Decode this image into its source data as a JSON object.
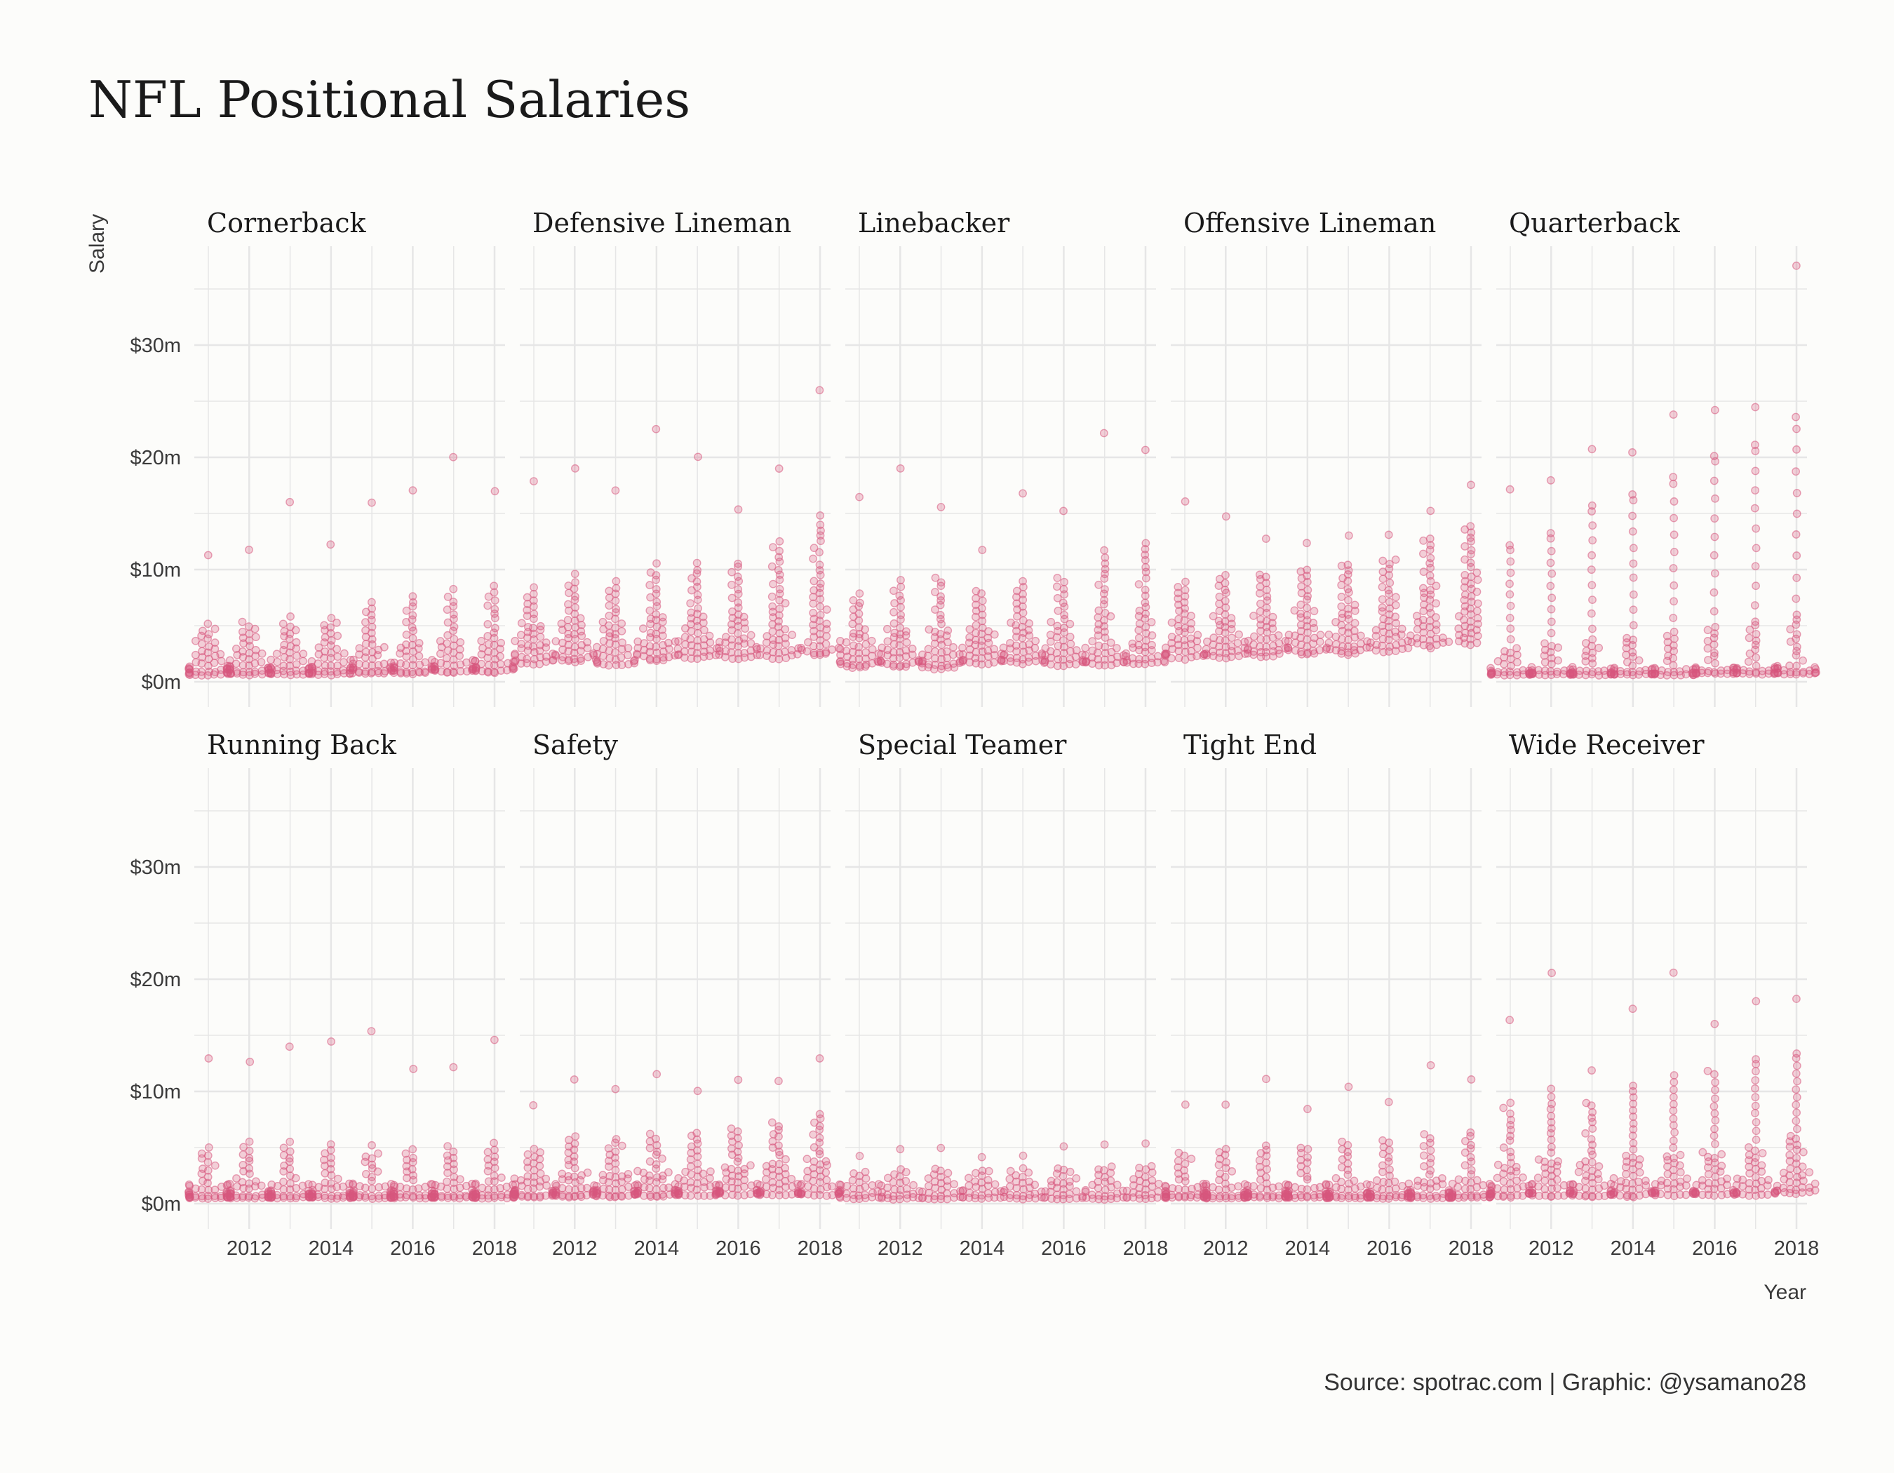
{
  "title": "NFL Positional Salaries",
  "caption": "Source: spotrac.com | Graphic: @ysamano28",
  "colors": {
    "point": "#d7577e",
    "background": "#fcfcfa",
    "grid": "#e6e6e6"
  },
  "chart_data": {
    "type": "scatter",
    "style": "beeswarm small multiples, semi-transparent points, 5 x 2 facet grid",
    "xlabel": "Year",
    "ylabel": "Salary",
    "x_range": [
      2011,
      2018
    ],
    "ylim": [
      0,
      38
    ],
    "x_ticks": [
      2012,
      2014,
      2016,
      2018
    ],
    "y_ticks": [
      {
        "value": 0,
        "label": "$0m"
      },
      {
        "value": 10,
        "label": "$10m"
      },
      {
        "value": 20,
        "label": "$20m"
      },
      {
        "value": 30,
        "label": "$30m"
      }
    ],
    "grid": true,
    "point_counts_per_year": {
      "Special Teamer": 30,
      "default": 50,
      "Quarterback": 45
    },
    "facets": [
      {
        "name": "Cornerback",
        "years": [
          {
            "year": 2011,
            "max": 11.3,
            "q": [
              0.6,
              0.8,
              1.3,
              2.7,
              4.7
            ]
          },
          {
            "year": 2012,
            "max": 11.8,
            "q": [
              0.6,
              0.9,
              1.4,
              2.8,
              4.9
            ]
          },
          {
            "year": 2013,
            "max": 16.0,
            "q": [
              0.6,
              0.8,
              1.4,
              2.9,
              5.1
            ]
          },
          {
            "year": 2014,
            "max": 12.3,
            "q": [
              0.6,
              0.9,
              1.5,
              3.0,
              5.3
            ]
          },
          {
            "year": 2015,
            "max": 16.0,
            "q": [
              0.7,
              1.0,
              1.7,
              3.4,
              6.5
            ]
          },
          {
            "year": 2016,
            "max": 17.0,
            "q": [
              0.7,
              1.0,
              1.7,
              3.5,
              7.0
            ]
          },
          {
            "year": 2017,
            "max": 20.0,
            "q": [
              0.8,
              1.1,
              1.9,
              3.8,
              7.5
            ]
          },
          {
            "year": 2018,
            "max": 17.0,
            "q": [
              0.8,
              1.2,
              2.0,
              4.0,
              8.0
            ]
          }
        ]
      },
      {
        "name": "Defensive Lineman",
        "years": [
          {
            "year": 2011,
            "max": 17.8,
            "q": [
              1.5,
              2.2,
              3.3,
              5.0,
              7.8
            ]
          },
          {
            "year": 2012,
            "max": 19.0,
            "q": [
              1.7,
              2.5,
              3.8,
              5.7,
              8.9
            ]
          },
          {
            "year": 2013,
            "max": 17.0,
            "q": [
              1.4,
              2.0,
              3.3,
              5.3,
              8.4
            ]
          },
          {
            "year": 2014,
            "max": 22.5,
            "q": [
              1.8,
              2.6,
              3.8,
              6.0,
              9.8
            ]
          },
          {
            "year": 2015,
            "max": 20.0,
            "q": [
              2.0,
              2.8,
              4.0,
              6.2,
              10.0
            ]
          },
          {
            "year": 2016,
            "max": 15.3,
            "q": [
              2.0,
              2.8,
              3.9,
              6.2,
              10.2
            ]
          },
          {
            "year": 2017,
            "max": 19.0,
            "q": [
              2.0,
              2.9,
              4.5,
              7.8,
              12.0
            ]
          },
          {
            "year": 2018,
            "max": 26.0,
            "q": [
              2.3,
              3.2,
              5.5,
              9.0,
              14.0
            ]
          }
        ]
      },
      {
        "name": "Linebacker",
        "years": [
          {
            "year": 2011,
            "max": 16.4,
            "q": [
              1.2,
              1.8,
              2.8,
              4.3,
              7.3
            ]
          },
          {
            "year": 2012,
            "max": 19.0,
            "q": [
              1.3,
              1.9,
              3.0,
              4.8,
              8.4
            ]
          },
          {
            "year": 2013,
            "max": 15.5,
            "q": [
              1.1,
              1.7,
              2.7,
              4.7,
              8.9
            ]
          },
          {
            "year": 2014,
            "max": 11.8,
            "q": [
              1.5,
              2.1,
              3.2,
              4.8,
              7.8
            ]
          },
          {
            "year": 2015,
            "max": 16.8,
            "q": [
              1.6,
              2.3,
              3.4,
              5.5,
              8.4
            ]
          },
          {
            "year": 2016,
            "max": 15.2,
            "q": [
              1.4,
              2.0,
              3.1,
              5.3,
              8.9
            ]
          },
          {
            "year": 2017,
            "max": 22.2,
            "q": [
              1.4,
              2.0,
              3.3,
              6.4,
              11.0
            ]
          },
          {
            "year": 2018,
            "max": 20.6,
            "q": [
              1.5,
              2.1,
              3.5,
              6.6,
              11.8
            ]
          }
        ]
      },
      {
        "name": "Offensive Lineman",
        "years": [
          {
            "year": 2011,
            "max": 16.0,
            "q": [
              2.0,
              2.6,
              3.8,
              5.8,
              8.4
            ]
          },
          {
            "year": 2012,
            "max": 14.8,
            "q": [
              2.1,
              2.8,
              3.9,
              6.0,
              9.1
            ]
          },
          {
            "year": 2013,
            "max": 12.7,
            "q": [
              2.2,
              2.9,
              4.1,
              6.3,
              9.4
            ]
          },
          {
            "year": 2014,
            "max": 12.3,
            "q": [
              2.4,
              3.1,
              4.3,
              6.6,
              9.8
            ]
          },
          {
            "year": 2015,
            "max": 13.0,
            "q": [
              2.4,
              3.2,
              4.5,
              6.9,
              10.3
            ]
          },
          {
            "year": 2016,
            "max": 13.1,
            "q": [
              2.6,
              3.5,
              4.9,
              7.5,
              10.8
            ]
          },
          {
            "year": 2017,
            "max": 15.2,
            "q": [
              3.0,
              4.0,
              5.8,
              8.6,
              12.6
            ]
          },
          {
            "year": 2018,
            "max": 17.5,
            "q": [
              3.2,
              4.8,
              7.0,
              9.8,
              13.6
            ]
          }
        ]
      },
      {
        "name": "Quarterback",
        "years": [
          {
            "year": 2011,
            "max": 17.2,
            "q": [
              0.6,
              0.7,
              1.0,
              3.0,
              12.0
            ]
          },
          {
            "year": 2012,
            "max": 18.0,
            "q": [
              0.6,
              0.7,
              1.1,
              3.5,
              13.0
            ]
          },
          {
            "year": 2013,
            "max": 20.8,
            "q": [
              0.6,
              0.7,
              1.1,
              3.8,
              15.5
            ]
          },
          {
            "year": 2014,
            "max": 20.4,
            "q": [
              0.6,
              0.7,
              1.2,
              4.0,
              16.5
            ]
          },
          {
            "year": 2015,
            "max": 23.8,
            "q": [
              0.6,
              0.7,
              1.2,
              4.5,
              18.0
            ]
          },
          {
            "year": 2016,
            "max": 24.2,
            "q": [
              0.7,
              0.8,
              1.3,
              5.0,
              20.0
            ]
          },
          {
            "year": 2017,
            "max": 24.5,
            "q": [
              0.7,
              0.8,
              1.4,
              5.5,
              21.0
            ]
          },
          {
            "year": 2018,
            "max": 37.0,
            "q": [
              0.7,
              0.8,
              1.5,
              6.0,
              23.0
            ]
          }
        ]
      },
      {
        "name": "Running Back",
        "years": [
          {
            "year": 2011,
            "max": 13.0,
            "q": [
              0.5,
              0.6,
              0.9,
              1.8,
              4.5
            ]
          },
          {
            "year": 2012,
            "max": 12.7,
            "q": [
              0.5,
              0.6,
              0.9,
              2.0,
              5.0
            ]
          },
          {
            "year": 2013,
            "max": 14.0,
            "q": [
              0.5,
              0.6,
              0.9,
              1.9,
              5.0
            ]
          },
          {
            "year": 2014,
            "max": 14.4,
            "q": [
              0.5,
              0.6,
              0.9,
              1.9,
              4.7
            ]
          },
          {
            "year": 2015,
            "max": 15.4,
            "q": [
              0.5,
              0.6,
              0.9,
              1.8,
              4.5
            ]
          },
          {
            "year": 2016,
            "max": 12.0,
            "q": [
              0.5,
              0.6,
              0.9,
              1.8,
              4.4
            ]
          },
          {
            "year": 2017,
            "max": 12.2,
            "q": [
              0.5,
              0.6,
              0.9,
              1.9,
              4.6
            ]
          },
          {
            "year": 2018,
            "max": 14.6,
            "q": [
              0.5,
              0.6,
              0.9,
              2.0,
              4.8
            ]
          }
        ]
      },
      {
        "name": "Safety",
        "years": [
          {
            "year": 2011,
            "max": 8.8,
            "q": [
              0.6,
              0.8,
              1.3,
              2.5,
              4.6
            ]
          },
          {
            "year": 2012,
            "max": 11.1,
            "q": [
              0.6,
              0.8,
              1.4,
              2.8,
              5.7
            ]
          },
          {
            "year": 2013,
            "max": 10.2,
            "q": [
              0.6,
              0.8,
              1.4,
              2.7,
              5.5
            ]
          },
          {
            "year": 2014,
            "max": 11.6,
            "q": [
              0.6,
              0.9,
              1.5,
              2.9,
              5.8
            ]
          },
          {
            "year": 2015,
            "max": 10.1,
            "q": [
              0.7,
              0.9,
              1.6,
              3.0,
              6.0
            ]
          },
          {
            "year": 2016,
            "max": 11.0,
            "q": [
              0.7,
              1.0,
              1.8,
              3.4,
              6.4
            ]
          },
          {
            "year": 2017,
            "max": 11.0,
            "q": [
              0.7,
              1.0,
              1.9,
              3.6,
              6.9
            ]
          },
          {
            "year": 2018,
            "max": 13.0,
            "q": [
              0.7,
              1.0,
              2.0,
              4.0,
              7.6
            ]
          }
        ]
      },
      {
        "name": "Special Teamer",
        "years": [
          {
            "year": 2011,
            "max": 4.3,
            "q": [
              0.4,
              0.6,
              1.1,
              1.8,
              2.8
            ]
          },
          {
            "year": 2012,
            "max": 4.9,
            "q": [
              0.4,
              0.6,
              1.1,
              1.9,
              3.0
            ]
          },
          {
            "year": 2013,
            "max": 5.0,
            "q": [
              0.4,
              0.6,
              1.2,
              2.0,
              3.1
            ]
          },
          {
            "year": 2014,
            "max": 4.2,
            "q": [
              0.4,
              0.6,
              1.2,
              2.0,
              3.0
            ]
          },
          {
            "year": 2015,
            "max": 4.3,
            "q": [
              0.4,
              0.6,
              1.2,
              2.0,
              3.1
            ]
          },
          {
            "year": 2016,
            "max": 5.1,
            "q": [
              0.4,
              0.6,
              1.2,
              2.1,
              3.2
            ]
          },
          {
            "year": 2017,
            "max": 5.3,
            "q": [
              0.4,
              0.6,
              1.2,
              2.1,
              3.3
            ]
          },
          {
            "year": 2018,
            "max": 5.3,
            "q": [
              0.4,
              0.6,
              1.3,
              2.2,
              3.4
            ]
          }
        ]
      },
      {
        "name": "Tight End",
        "years": [
          {
            "year": 2011,
            "max": 8.8,
            "q": [
              0.5,
              0.6,
              0.9,
              1.7,
              4.3
            ]
          },
          {
            "year": 2012,
            "max": 8.8,
            "q": [
              0.5,
              0.6,
              0.9,
              1.8,
              4.6
            ]
          },
          {
            "year": 2013,
            "max": 11.1,
            "q": [
              0.5,
              0.6,
              0.9,
              1.8,
              4.8
            ]
          },
          {
            "year": 2014,
            "max": 8.5,
            "q": [
              0.5,
              0.6,
              0.9,
              1.8,
              4.8
            ]
          },
          {
            "year": 2015,
            "max": 10.4,
            "q": [
              0.5,
              0.6,
              0.9,
              2.0,
              5.2
            ]
          },
          {
            "year": 2016,
            "max": 9.1,
            "q": [
              0.5,
              0.6,
              1.0,
              2.1,
              5.4
            ]
          },
          {
            "year": 2017,
            "max": 12.3,
            "q": [
              0.5,
              0.6,
              1.0,
              2.2,
              5.8
            ]
          },
          {
            "year": 2018,
            "max": 11.0,
            "q": [
              0.5,
              0.6,
              1.0,
              2.2,
              6.0
            ]
          }
        ]
      },
      {
        "name": "Wide Receiver",
        "years": [
          {
            "year": 2011,
            "max": 16.3,
            "q": [
              0.6,
              0.9,
              1.7,
              3.6,
              8.5
            ]
          },
          {
            "year": 2012,
            "max": 20.5,
            "q": [
              0.6,
              1.0,
              1.9,
              4.0,
              9.5
            ]
          },
          {
            "year": 2013,
            "max": 11.8,
            "q": [
              0.6,
              0.9,
              1.8,
              3.8,
              8.7
            ]
          },
          {
            "year": 2014,
            "max": 17.4,
            "q": [
              0.6,
              1.0,
              2.0,
              4.3,
              10.0
            ]
          },
          {
            "year": 2015,
            "max": 20.6,
            "q": [
              0.7,
              1.0,
              2.0,
              4.4,
              10.8
            ]
          },
          {
            "year": 2016,
            "max": 16.0,
            "q": [
              0.7,
              1.0,
              2.1,
              4.6,
              11.5
            ]
          },
          {
            "year": 2017,
            "max": 18.0,
            "q": [
              0.7,
              1.1,
              2.3,
              5.0,
              12.5
            ]
          },
          {
            "year": 2018,
            "max": 18.3,
            "q": [
              0.8,
              1.5,
              3.0,
              6.0,
              13.0
            ]
          }
        ]
      }
    ]
  }
}
